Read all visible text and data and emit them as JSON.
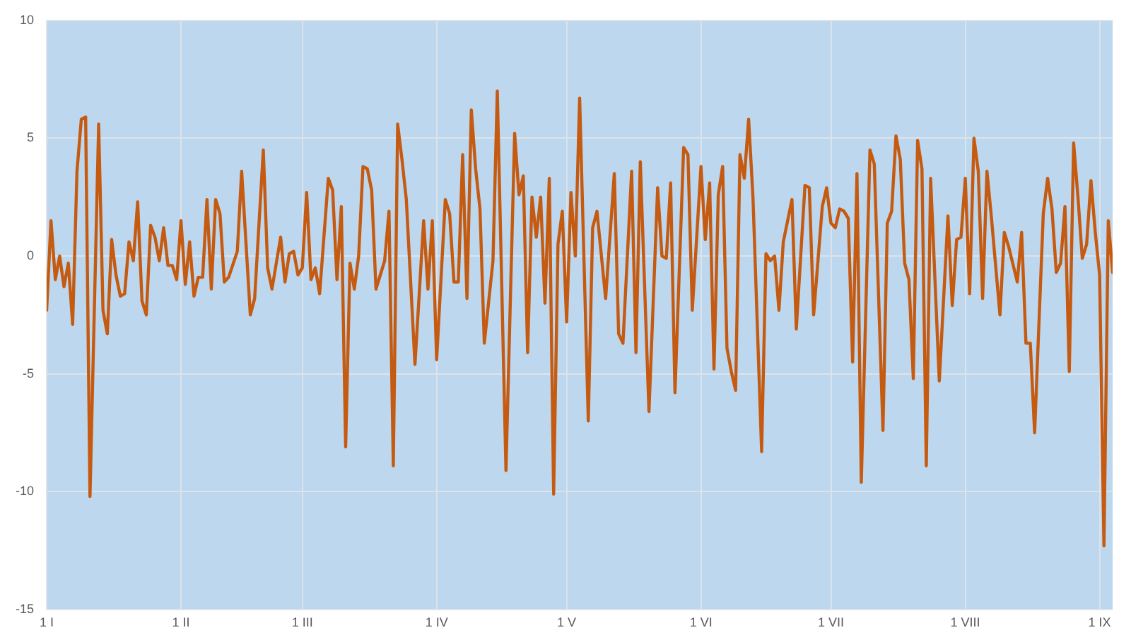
{
  "chart_data": {
    "type": "line",
    "x": [
      "--01-01",
      "--01-02",
      "--01-03",
      "--01-04",
      "--01-05",
      "--01-06",
      "--01-07",
      "--01-08",
      "--01-09",
      "--01-10",
      "--01-11",
      "--01-13",
      "--01-14",
      "--01-15",
      "--01-16",
      "--01-17",
      "--01-18",
      "--01-19",
      "--01-20",
      "--01-21",
      "--01-22",
      "--01-23",
      "--01-24",
      "--01-25",
      "--01-26",
      "--01-27",
      "--01-28",
      "--01-29",
      "--01-30",
      "--01-31",
      "--02-01",
      "--02-02",
      "--02-03",
      "--02-04",
      "--02-05",
      "--02-06",
      "--02-07",
      "--02-08",
      "--02-09",
      "--02-10",
      "--02-11",
      "--02-12",
      "--02-14",
      "--02-15",
      "--02-17",
      "--02-18",
      "--02-20",
      "--02-21",
      "--02-22",
      "--02-24",
      "--02-25",
      "--02-26",
      "--02-27",
      "--02-28",
      "--03-01",
      "--03-02",
      "--03-03",
      "--03-04",
      "--03-05",
      "--03-07",
      "--03-08",
      "--03-09",
      "--03-10",
      "--03-11",
      "--03-12",
      "--03-13",
      "--03-14",
      "--03-15",
      "--03-16",
      "--03-17",
      "--03-18",
      "--03-20",
      "--03-21",
      "--03-22",
      "--03-23",
      "--03-24",
      "--03-25",
      "--03-27",
      "--03-29",
      "--03-30",
      "--03-31",
      "--04-01",
      "--04-03",
      "--04-04",
      "--04-05",
      "--04-06",
      "--04-07",
      "--04-08",
      "--04-09",
      "--04-10",
      "--04-11",
      "--04-12",
      "--04-14",
      "--04-15",
      "--04-17",
      "--04-19",
      "--04-20",
      "--04-21",
      "--04-22",
      "--04-23",
      "--04-24",
      "--04-25",
      "--04-26",
      "--04-27",
      "--04-28",
      "--04-29",
      "--04-30",
      "--05-01",
      "--05-02",
      "--05-03",
      "--05-04",
      "--05-06",
      "--05-07",
      "--05-08",
      "--05-10",
      "--05-12",
      "--05-13",
      "--05-14",
      "--05-16",
      "--05-17",
      "--05-18",
      "--05-20",
      "--05-22",
      "--05-23",
      "--05-24",
      "--05-25",
      "--05-26",
      "--05-28",
      "--05-29",
      "--05-30",
      "--06-01",
      "--06-02",
      "--06-03",
      "--06-04",
      "--06-05",
      "--06-06",
      "--06-07",
      "--06-08",
      "--06-09",
      "--06-10",
      "--06-11",
      "--06-12",
      "--06-13",
      "--06-15",
      "--06-16",
      "--06-17",
      "--06-18",
      "--06-19",
      "--06-20",
      "--06-22",
      "--06-23",
      "--06-25",
      "--06-26",
      "--06-27",
      "--06-29",
      "--06-30",
      "--07-01",
      "--07-02",
      "--07-03",
      "--07-04",
      "--07-05",
      "--07-06",
      "--07-07",
      "--07-08",
      "--07-10",
      "--07-11",
      "--07-13",
      "--07-14",
      "--07-15",
      "--07-16",
      "--07-17",
      "--07-18",
      "--07-19",
      "--07-20",
      "--07-21",
      "--07-22",
      "--07-23",
      "--07-24",
      "--07-26",
      "--07-28",
      "--07-29",
      "--07-30",
      "--07-31",
      "--08-01",
      "--08-02",
      "--08-03",
      "--08-04",
      "--08-05",
      "--08-06",
      "--08-07",
      "--08-09",
      "--08-10",
      "--08-11",
      "--08-13",
      "--08-14",
      "--08-15",
      "--08-16",
      "--08-17",
      "--08-19",
      "--08-20",
      "--08-21",
      "--08-22",
      "--08-23",
      "--08-24",
      "--08-25",
      "--08-26",
      "--08-27",
      "--08-28",
      "--08-29",
      "--08-30",
      "--08-31",
      "--09-01",
      "--09-02",
      "--09-03",
      "--09-04"
    ],
    "values": [
      -2.3,
      1.5,
      -1.0,
      0.0,
      -1.3,
      -0.3,
      -2.9,
      3.6,
      5.8,
      5.9,
      -10.2,
      5.6,
      -2.3,
      -3.3,
      0.7,
      -0.8,
      -1.7,
      -1.6,
      0.6,
      -0.2,
      2.3,
      -1.9,
      -2.5,
      1.3,
      0.8,
      -0.2,
      1.2,
      -0.4,
      -0.4,
      -1.0,
      1.5,
      -1.2,
      0.6,
      -1.7,
      -0.9,
      -0.9,
      2.4,
      -1.4,
      2.4,
      1.8,
      -1.1,
      -0.9,
      0.2,
      3.6,
      -2.5,
      -1.8,
      4.5,
      -0.5,
      -1.4,
      0.8,
      -1.1,
      0.1,
      0.2,
      -0.8,
      -0.5,
      2.7,
      -1.0,
      -0.5,
      -1.6,
      3.3,
      2.8,
      -1.0,
      2.1,
      -8.1,
      -0.3,
      -1.4,
      0.0,
      3.8,
      3.7,
      2.8,
      -1.4,
      -0.2,
      1.9,
      -8.9,
      5.6,
      4.1,
      2.4,
      -4.6,
      1.5,
      -1.4,
      1.5,
      -4.4,
      2.4,
      1.8,
      -1.1,
      -1.1,
      4.3,
      -1.8,
      6.2,
      3.7,
      2.0,
      -3.7,
      -0.2,
      7.0,
      -9.1,
      5.2,
      2.6,
      3.4,
      -4.1,
      2.5,
      0.8,
      2.5,
      -2.0,
      3.3,
      -10.1,
      0.5,
      1.9,
      -2.8,
      2.7,
      0.0,
      6.7,
      -7.0,
      1.2,
      1.9,
      -1.8,
      3.5,
      -3.3,
      -3.7,
      3.6,
      -4.1,
      4.0,
      -6.6,
      2.9,
      0.0,
      -0.1,
      3.1,
      -5.8,
      4.6,
      4.3,
      -2.3,
      3.8,
      0.7,
      3.1,
      -4.8,
      2.6,
      3.8,
      -3.9,
      -4.9,
      -5.7,
      4.3,
      3.3,
      5.8,
      2.5,
      -8.3,
      0.1,
      -0.2,
      0.0,
      -2.3,
      0.6,
      2.4,
      -3.1,
      3.0,
      2.9,
      -2.5,
      2.1,
      2.9,
      1.4,
      1.2,
      2.0,
      1.9,
      1.6,
      -4.5,
      3.5,
      -9.6,
      4.5,
      3.9,
      -7.4,
      1.4,
      1.9,
      5.1,
      4.1,
      -0.3,
      -1.0,
      -5.2,
      4.9,
      3.7,
      -8.9,
      3.3,
      -5.3,
      1.7,
      -2.1,
      0.7,
      0.8,
      3.3,
      -1.6,
      5.0,
      3.6,
      -1.8,
      3.6,
      1.7,
      -2.5,
      1.0,
      0.4,
      -1.1,
      1.0,
      -3.7,
      -3.7,
      -7.5,
      1.8,
      3.3,
      2.0,
      -0.7,
      -0.3,
      2.1,
      -4.9,
      4.8,
      2.5,
      -0.1,
      0.5,
      3.2,
      1.0,
      -0.8,
      -12.3,
      1.5,
      -0.7
    ],
    "color": "#c55a11",
    "xlim": [
      "--01-01",
      "--09-04"
    ],
    "xticks": [
      {
        "value": "--01-01",
        "label": "1 I"
      },
      {
        "value": "--02-01",
        "label": "1 II"
      },
      {
        "value": "--03-01",
        "label": "1 III"
      },
      {
        "value": "--04-01",
        "label": "1 IV"
      },
      {
        "value": "--05-01",
        "label": "1 V"
      },
      {
        "value": "--06-01",
        "label": "1 VI"
      },
      {
        "value": "--07-01",
        "label": "1 VII"
      },
      {
        "value": "--08-01",
        "label": "1 VIII"
      },
      {
        "value": "--09-01",
        "label": "1 IX"
      }
    ],
    "ylim": [
      -15,
      10
    ],
    "yticks": [
      -15,
      -10,
      -5,
      0,
      5,
      10
    ],
    "grid": true
  }
}
